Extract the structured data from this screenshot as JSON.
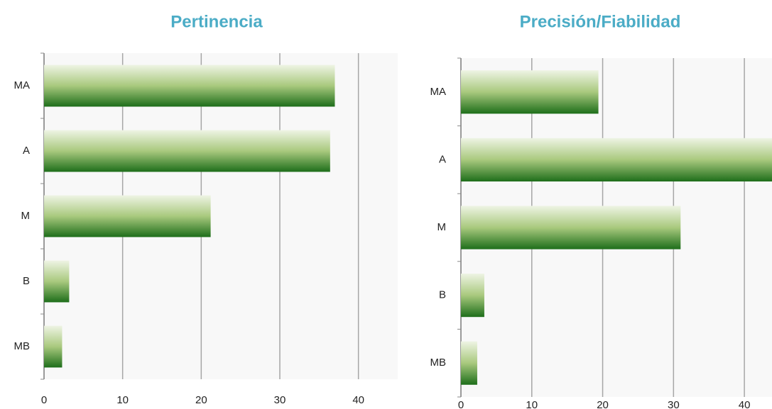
{
  "chart_data": [
    {
      "type": "barh",
      "title": "Pertinencia",
      "categories": [
        "MA",
        "A",
        "M",
        "B",
        "MB"
      ],
      "values": [
        37,
        36.4,
        21.2,
        3.2,
        2.3
      ],
      "color": "#1e6e1a",
      "xlim": [
        0,
        45
      ],
      "xticks": [
        0,
        10,
        20,
        30,
        40
      ],
      "grid": true
    },
    {
      "type": "barh",
      "title": "Precisión/Fiabilidad",
      "categories": [
        "MA",
        "A",
        "M",
        "B",
        "MB"
      ],
      "values": [
        19.4,
        44,
        31,
        3.3,
        2.3
      ],
      "color": "#1e6e1a",
      "xlim": [
        0,
        45
      ],
      "xticks": [
        0,
        10,
        20,
        30,
        40
      ],
      "grid": true
    }
  ]
}
